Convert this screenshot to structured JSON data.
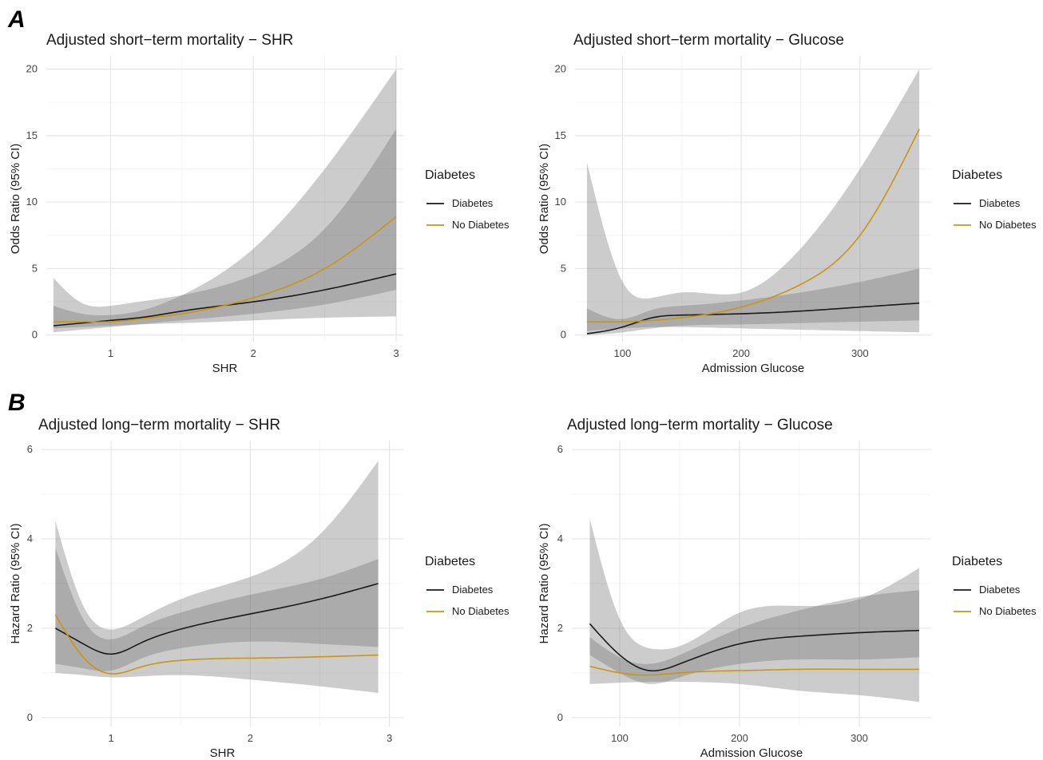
{
  "figure": {
    "panel_labels": [
      "A",
      "B"
    ],
    "colors": {
      "diabetes": "#1a1a1a",
      "no_diabetes": "#c8960f",
      "band_light": "#bdbdbd",
      "band_dark": "#7a7a7a"
    }
  },
  "chart_data": [
    {
      "id": "A-shr",
      "type": "line",
      "title": "Adjusted short−term mortality − SHR",
      "xlabel": "SHR",
      "ylabel": "Odds Ratio (95% CI)",
      "xlim": [
        0.55,
        3.05
      ],
      "ylim": [
        -0.5,
        21
      ],
      "xticks": [
        1,
        2,
        3
      ],
      "yticks": [
        0,
        5,
        10,
        15,
        20
      ],
      "legend": {
        "title": "Diabetes",
        "entries": [
          "Diabetes",
          "No Diabetes"
        ]
      },
      "series": [
        {
          "name": "Diabetes",
          "color_key": "diabetes",
          "x": [
            0.6,
            0.8,
            1.0,
            1.2,
            1.5,
            2.0,
            2.5,
            3.0
          ],
          "y": [
            0.7,
            0.9,
            1.1,
            1.3,
            1.8,
            2.5,
            3.4,
            4.6
          ],
          "lower": [
            0.2,
            0.4,
            0.6,
            0.8,
            1.1,
            1.6,
            2.3,
            3.4
          ],
          "upper": [
            4.3,
            2.4,
            2.2,
            2.5,
            3.0,
            4.5,
            8.0,
            15.5
          ]
        },
        {
          "name": "No Diabetes",
          "color_key": "no_diabetes",
          "x": [
            0.6,
            0.8,
            1.0,
            1.2,
            1.5,
            2.0,
            2.5,
            3.0
          ],
          "y": [
            1.0,
            1.0,
            1.0,
            1.2,
            1.6,
            2.8,
            5.0,
            8.9
          ],
          "lower": [
            0.5,
            0.6,
            0.7,
            0.8,
            0.9,
            1.1,
            1.3,
            1.4
          ],
          "upper": [
            2.2,
            1.6,
            1.5,
            1.8,
            3.0,
            6.5,
            12.5,
            20.0
          ]
        }
      ]
    },
    {
      "id": "A-glucose",
      "type": "line",
      "title": "Adjusted short−term mortality − Glucose",
      "xlabel": "Admission Glucose",
      "ylabel": "Odds Ratio (95% CI)",
      "xlim": [
        60,
        360
      ],
      "ylim": [
        -0.5,
        21
      ],
      "xticks": [
        100,
        200,
        300
      ],
      "yticks": [
        0,
        5,
        10,
        15,
        20
      ],
      "legend": {
        "title": "Diabetes",
        "entries": [
          "Diabetes",
          "No Diabetes"
        ]
      },
      "series": [
        {
          "name": "Diabetes",
          "color_key": "diabetes",
          "x": [
            70,
            100,
            125,
            150,
            200,
            250,
            300,
            350
          ],
          "y": [
            0.1,
            0.6,
            1.3,
            1.5,
            1.6,
            1.8,
            2.1,
            2.4
          ],
          "lower": [
            0.0,
            0.2,
            0.5,
            0.7,
            0.8,
            0.9,
            1.0,
            1.1
          ],
          "upper": [
            2.0,
            1.2,
            1.9,
            2.2,
            2.6,
            3.2,
            4.0,
            5.0
          ]
        },
        {
          "name": "No Diabetes",
          "color_key": "no_diabetes",
          "x": [
            70,
            100,
            125,
            150,
            200,
            250,
            300,
            350
          ],
          "y": [
            1.0,
            1.0,
            1.1,
            1.3,
            2.1,
            3.8,
            7.5,
            15.5
          ],
          "lower": [
            0.3,
            0.5,
            0.6,
            0.6,
            0.5,
            0.4,
            0.3,
            0.2
          ],
          "upper": [
            13.0,
            4.0,
            2.8,
            3.2,
            3.2,
            6.5,
            12.5,
            20.0
          ]
        }
      ]
    },
    {
      "id": "B-shr",
      "type": "line",
      "title": "Adjusted long−term mortality − SHR",
      "xlabel": "SHR",
      "ylabel": "Hazard Ratio (95% CI)",
      "xlim": [
        0.5,
        3.1
      ],
      "ylim": [
        -0.2,
        6.2
      ],
      "xticks": [
        1,
        2,
        3
      ],
      "yticks": [
        0,
        2,
        4,
        6
      ],
      "legend": {
        "title": "Diabetes",
        "entries": [
          "Diabetes",
          "No Diabetes"
        ]
      },
      "series": [
        {
          "name": "Diabetes",
          "color_key": "diabetes",
          "x": [
            0.6,
            0.8,
            1.0,
            1.2,
            1.5,
            2.0,
            2.5,
            2.92
          ],
          "y": [
            2.0,
            1.65,
            1.42,
            1.65,
            1.98,
            2.32,
            2.65,
            3.0
          ],
          "lower": [
            1.2,
            1.1,
            1.05,
            1.3,
            1.55,
            1.7,
            1.65,
            1.58
          ],
          "upper": [
            3.8,
            2.2,
            1.75,
            2.0,
            2.35,
            2.75,
            3.1,
            3.55
          ]
        },
        {
          "name": "No Diabetes",
          "color_key": "no_diabetes",
          "x": [
            0.6,
            0.8,
            1.0,
            1.2,
            1.5,
            2.0,
            2.5,
            2.92
          ],
          "y": [
            2.3,
            1.35,
            0.98,
            1.12,
            1.28,
            1.33,
            1.36,
            1.4
          ],
          "lower": [
            1.0,
            0.95,
            0.9,
            0.92,
            0.95,
            0.85,
            0.7,
            0.55
          ],
          "upper": [
            4.4,
            2.5,
            1.97,
            2.2,
            2.65,
            3.15,
            4.1,
            5.75
          ]
        }
      ]
    },
    {
      "id": "B-glucose",
      "type": "line",
      "title": "Adjusted long−term mortality − Glucose",
      "xlabel": "Admission Glucose",
      "ylabel": "Hazard Ratio (95% CI)",
      "xlim": [
        60,
        360
      ],
      "ylim": [
        -0.2,
        6.2
      ],
      "xticks": [
        100,
        200,
        300
      ],
      "yticks": [
        0,
        2,
        4,
        6
      ],
      "legend": {
        "title": "Diabetes",
        "entries": [
          "Diabetes",
          "No Diabetes"
        ]
      },
      "series": [
        {
          "name": "Diabetes",
          "color_key": "diabetes",
          "x": [
            75,
            100,
            125,
            150,
            200,
            250,
            300,
            350
          ],
          "y": [
            2.1,
            1.4,
            1.05,
            1.2,
            1.65,
            1.82,
            1.9,
            1.95
          ],
          "lower": [
            1.4,
            1.0,
            0.75,
            0.9,
            1.2,
            1.3,
            1.3,
            1.35
          ],
          "upper": [
            1.8,
            1.35,
            1.2,
            1.4,
            2.0,
            2.4,
            2.7,
            2.85
          ]
        },
        {
          "name": "No Diabetes",
          "color_key": "no_diabetes",
          "x": [
            75,
            100,
            125,
            150,
            200,
            250,
            300,
            350
          ],
          "y": [
            1.15,
            1.0,
            0.95,
            1.0,
            1.05,
            1.08,
            1.08,
            1.08
          ],
          "lower": [
            0.75,
            0.78,
            0.8,
            0.8,
            0.75,
            0.6,
            0.5,
            0.35
          ],
          "upper": [
            4.45,
            2.2,
            1.55,
            1.6,
            2.35,
            2.5,
            2.65,
            3.35
          ]
        }
      ]
    }
  ]
}
